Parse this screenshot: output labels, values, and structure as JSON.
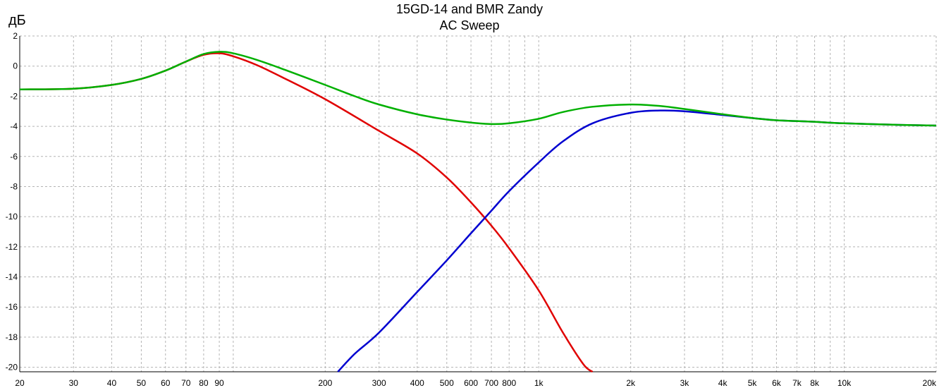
{
  "chart_data": {
    "type": "line",
    "title": "15GD-14 and BMR Zandy",
    "subtitle": "AC Sweep",
    "ylabel": "дБ",
    "xlabel": "",
    "xscale": "log",
    "xlim": [
      20,
      20000
    ],
    "ylim": [
      -20.3,
      2
    ],
    "grid": true,
    "y_ticks": [
      2,
      0,
      -2,
      -4,
      -6,
      -8,
      -10,
      -12,
      -14,
      -16,
      -18,
      -20
    ],
    "x_ticks": [
      {
        "v": 20,
        "label": "20"
      },
      {
        "v": 30,
        "label": "30"
      },
      {
        "v": 40,
        "label": "40"
      },
      {
        "v": 50,
        "label": "50"
      },
      {
        "v": 60,
        "label": "60"
      },
      {
        "v": 70,
        "label": "70"
      },
      {
        "v": 80,
        "label": "80"
      },
      {
        "v": 90,
        "label": "90"
      },
      {
        "v": 200,
        "label": "200"
      },
      {
        "v": 300,
        "label": "300"
      },
      {
        "v": 400,
        "label": "400"
      },
      {
        "v": 500,
        "label": "500"
      },
      {
        "v": 600,
        "label": "600"
      },
      {
        "v": 700,
        "label": "700"
      },
      {
        "v": 800,
        "label": "800"
      },
      {
        "v": 1000,
        "label": "1k"
      },
      {
        "v": 2000,
        "label": "2k"
      },
      {
        "v": 3000,
        "label": "3k"
      },
      {
        "v": 4000,
        "label": "4k"
      },
      {
        "v": 5000,
        "label": "5k"
      },
      {
        "v": 6000,
        "label": "6k"
      },
      {
        "v": 7000,
        "label": "7k"
      },
      {
        "v": 8000,
        "label": "8k"
      },
      {
        "v": 10000,
        "label": "10k"
      },
      {
        "v": 20000,
        "label": "20k"
      }
    ],
    "series": [
      {
        "color": "#e00000",
        "x": [
          20,
          30,
          40,
          50,
          60,
          70,
          80,
          90,
          100,
          120,
          150,
          200,
          300,
          400,
          500,
          600,
          700,
          800,
          1000,
          1200,
          1400,
          1500
        ],
        "y": [
          -1.55,
          -1.5,
          -1.25,
          -0.85,
          -0.3,
          0.3,
          0.75,
          0.85,
          0.65,
          0.05,
          -0.9,
          -2.2,
          -4.3,
          -5.8,
          -7.4,
          -9.05,
          -10.6,
          -12.1,
          -14.9,
          -17.7,
          -19.8,
          -20.3
        ]
      },
      {
        "color": "#0000d0",
        "x": [
          220,
          250,
          300,
          400,
          500,
          600,
          700,
          800,
          1000,
          1200,
          1500,
          2000,
          2500,
          3000,
          4000,
          5000,
          6000,
          7000,
          8000,
          10000,
          15000,
          20000
        ],
        "y": [
          -20.3,
          -19.1,
          -17.7,
          -15.0,
          -12.9,
          -11.1,
          -9.6,
          -8.3,
          -6.4,
          -5.0,
          -3.8,
          -3.1,
          -2.95,
          -3.0,
          -3.25,
          -3.45,
          -3.6,
          -3.65,
          -3.7,
          -3.8,
          -3.9,
          -3.95
        ]
      },
      {
        "color": "#00b000",
        "x": [
          20,
          30,
          40,
          50,
          60,
          70,
          80,
          90,
          100,
          120,
          150,
          200,
          250,
          300,
          400,
          500,
          600,
          700,
          800,
          1000,
          1200,
          1500,
          2000,
          2500,
          3000,
          4000,
          5000,
          6000,
          7000,
          8000,
          10000,
          15000,
          20000
        ],
        "y": [
          -1.55,
          -1.5,
          -1.25,
          -0.85,
          -0.3,
          0.3,
          0.8,
          0.95,
          0.85,
          0.4,
          -0.3,
          -1.25,
          -2.0,
          -2.55,
          -3.2,
          -3.55,
          -3.75,
          -3.85,
          -3.8,
          -3.5,
          -3.05,
          -2.7,
          -2.55,
          -2.65,
          -2.85,
          -3.2,
          -3.45,
          -3.6,
          -3.65,
          -3.7,
          -3.8,
          -3.9,
          -3.95
        ]
      }
    ]
  }
}
